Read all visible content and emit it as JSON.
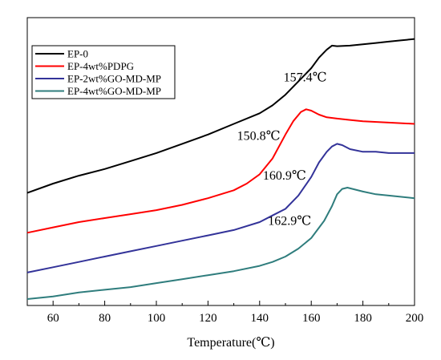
{
  "chart_data": {
    "type": "line",
    "title": "",
    "xlabel": "Temperature(℃)",
    "ylabel": "",
    "xlim": [
      50,
      200
    ],
    "ylim": [
      0,
      100
    ],
    "xticks": [
      60,
      80,
      100,
      120,
      140,
      160,
      180,
      200
    ],
    "grid": false,
    "legend_position": "top-left",
    "series": [
      {
        "name": "EP-0",
        "color": "#000000",
        "x": [
          50,
          60,
          70,
          80,
          90,
          100,
          110,
          120,
          130,
          140,
          145,
          150,
          155,
          160,
          163,
          166,
          168,
          170,
          175,
          180,
          185,
          190,
          195,
          200
        ],
        "y": [
          40,
          43.5,
          46.5,
          49,
          52,
          55,
          58.5,
          62,
          66,
          70,
          73,
          77,
          82,
          87,
          91,
          94,
          95.5,
          95.3,
          95.5,
          96,
          96.5,
          97,
          97.5,
          98
        ]
      },
      {
        "name": "EP-4wt%PDPG",
        "color": "#ff0000",
        "x": [
          50,
          60,
          70,
          80,
          90,
          100,
          110,
          120,
          130,
          135,
          140,
          145,
          150,
          153,
          156,
          158,
          160,
          163,
          166,
          170,
          175,
          180,
          190,
          200
        ],
        "y": [
          25,
          27,
          29,
          30.5,
          32,
          33.5,
          35.5,
          38,
          41,
          43.5,
          47,
          53,
          62,
          67,
          70.5,
          71.5,
          71,
          69.5,
          68.5,
          68,
          67.5,
          67,
          66.5,
          66
        ]
      },
      {
        "name": "EP-2wt%GO-MD-MP",
        "color": "#333399",
        "x": [
          50,
          60,
          70,
          80,
          90,
          100,
          110,
          120,
          130,
          140,
          145,
          150,
          155,
          160,
          163,
          166,
          168,
          170,
          172,
          175,
          180,
          185,
          190,
          200
        ],
        "y": [
          10,
          12,
          14,
          16,
          18,
          20,
          22,
          24,
          26,
          29,
          31.5,
          34,
          39,
          46,
          51.5,
          55.5,
          57.5,
          58.5,
          58,
          56.5,
          55.5,
          55.5,
          55,
          55
        ]
      },
      {
        "name": "EP-4wt%GO-MD-MP",
        "color": "#2f7d7d",
        "x": [
          50,
          60,
          70,
          80,
          90,
          100,
          110,
          120,
          130,
          140,
          145,
          150,
          155,
          160,
          165,
          168,
          170,
          172,
          174,
          176,
          180,
          185,
          190,
          200
        ],
        "y": [
          0,
          1,
          2.5,
          3.5,
          4.5,
          6,
          7.5,
          9,
          10.5,
          12.5,
          14,
          16,
          19,
          23,
          29.5,
          35,
          39.5,
          41.5,
          42,
          41.5,
          40.5,
          39.5,
          39,
          38
        ]
      }
    ],
    "annotations": [
      {
        "text": "157.4℃",
        "x": 166,
        "y": 82
      },
      {
        "text": "150.8℃",
        "x": 148,
        "y": 60
      },
      {
        "text": "160.9℃",
        "x": 158,
        "y": 45
      },
      {
        "text": "162.9℃",
        "x": 160,
        "y": 28
      }
    ]
  }
}
